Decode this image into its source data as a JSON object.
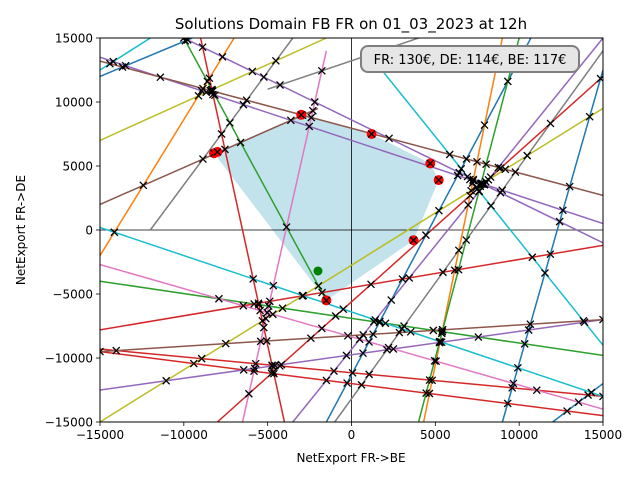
{
  "chart_data": {
    "type": "line",
    "title": "Solutions Domain FB FR on 01_03_2023 at 12h",
    "xlabel": "NetExport FR->BE",
    "ylabel": "NetExport FR->DE",
    "xlim": [
      -15000,
      15000
    ],
    "ylim": [
      -15000,
      15000
    ],
    "xticks": [
      -15000,
      -10000,
      -5000,
      0,
      5000,
      10000,
      15000
    ],
    "yticks": [
      -15000,
      -10000,
      -5000,
      0,
      5000,
      10000,
      15000
    ],
    "grid": false,
    "annotation": "FR: 130€, DE: 114€, BE: 117€",
    "feasible_region": [
      [
        -3000,
        9000
      ],
      [
        1200,
        7500
      ],
      [
        4700,
        5200
      ],
      [
        5200,
        3900
      ],
      [
        3700,
        -800
      ],
      [
        -1500,
        -5500
      ],
      [
        -8200,
        6000
      ]
    ],
    "vertex_points": [
      [
        -3000,
        9000
      ],
      [
        1200,
        7500
      ],
      [
        4700,
        5200
      ],
      [
        5200,
        3900
      ],
      [
        3700,
        -800
      ],
      [
        -1500,
        -5500
      ],
      [
        -8200,
        6000
      ],
      [
        -8000,
        6100
      ]
    ],
    "operating_point": [
      -2000,
      -3200
    ],
    "colors": {
      "region": "#add8e6",
      "vertex": "#ff0000",
      "operating_point": "#008000",
      "cross": "#000000"
    },
    "constraints": [
      {
        "color": "#1f77b4",
        "points": [
          [
            -1500,
            -15000
          ],
          [
            10700,
            15000
          ]
        ]
      },
      {
        "color": "#1f77b4",
        "points": [
          [
            9000,
            -15000
          ],
          [
            15000,
            12500
          ]
        ]
      },
      {
        "color": "#1f77b4",
        "points": [
          [
            12000,
            -15000
          ],
          [
            15000,
            -12000
          ]
        ]
      },
      {
        "color": "#1f77b4",
        "points": [
          [
            -9500,
            15000
          ],
          [
            -15000,
            12000
          ]
        ]
      },
      {
        "color": "#ff7f0e",
        "points": [
          [
            -15000,
            -2000
          ],
          [
            -7000,
            15000
          ]
        ]
      },
      {
        "color": "#ff7f0e",
        "points": [
          [
            4300,
            -15000
          ],
          [
            9000,
            15000
          ]
        ]
      },
      {
        "color": "#2ca02c",
        "points": [
          [
            -10000,
            15000
          ],
          [
            -1500,
            -5500
          ]
        ]
      },
      {
        "color": "#2ca02c",
        "points": [
          [
            -15000,
            -4000
          ],
          [
            15000,
            -9800
          ]
        ]
      },
      {
        "color": "#2ca02c",
        "points": [
          [
            4000,
            -15000
          ],
          [
            10000,
            15000
          ]
        ]
      },
      {
        "color": "#d62728",
        "points": [
          [
            -15000,
            -7800
          ],
          [
            15000,
            -1200
          ]
        ]
      },
      {
        "color": "#d62728",
        "points": [
          [
            -15000,
            -9300
          ],
          [
            15000,
            -13000
          ]
        ]
      },
      {
        "color": "#d62728",
        "points": [
          [
            -15000,
            -9500
          ],
          [
            15000,
            -14500
          ]
        ]
      },
      {
        "color": "#d62728",
        "points": [
          [
            -8000,
            -15000
          ],
          [
            15000,
            12000
          ]
        ]
      },
      {
        "color": "#d62728",
        "points": [
          [
            -9000,
            15000
          ],
          [
            -4000,
            -15000
          ]
        ]
      },
      {
        "color": "#9467bd",
        "points": [
          [
            -15000,
            13500
          ],
          [
            15000,
            500
          ]
        ]
      },
      {
        "color": "#9467bd",
        "points": [
          [
            -10000,
            15000
          ],
          [
            15000,
            -1000
          ]
        ]
      },
      {
        "color": "#9467bd",
        "points": [
          [
            -3500,
            -15000
          ],
          [
            15000,
            15000
          ]
        ]
      },
      {
        "color": "#9467bd",
        "points": [
          [
            -15000,
            -12500
          ],
          [
            15000,
            -7000
          ]
        ]
      },
      {
        "color": "#8c564b",
        "points": [
          [
            -15000,
            2000
          ],
          [
            -2000,
            9500
          ]
        ]
      },
      {
        "color": "#8c564b",
        "points": [
          [
            -15000,
            13200
          ],
          [
            15000,
            2700
          ]
        ]
      },
      {
        "color": "#8c564b",
        "points": [
          [
            -15000,
            -9500
          ],
          [
            15000,
            -7000
          ]
        ]
      },
      {
        "color": "#e377c2",
        "points": [
          [
            -15000,
            -2700
          ],
          [
            15000,
            -14000
          ]
        ]
      },
      {
        "color": "#e377c2",
        "points": [
          [
            -6500,
            -15000
          ],
          [
            -1500,
            14000
          ]
        ]
      },
      {
        "color": "#7f7f7f",
        "points": [
          [
            -3500,
            15000
          ],
          [
            -12000,
            0
          ]
        ]
      },
      {
        "color": "#7f7f7f",
        "points": [
          [
            -1000,
            -15000
          ],
          [
            15000,
            14000
          ]
        ]
      },
      {
        "color": "#7f7f7f",
        "points": [
          [
            -5000,
            11000
          ],
          [
            4000,
            15000
          ]
        ]
      },
      {
        "color": "#bcbd22",
        "points": [
          [
            -15000,
            7000
          ],
          [
            -1500,
            15000
          ]
        ]
      },
      {
        "color": "#bcbd22",
        "points": [
          [
            -15000,
            -15000
          ],
          [
            15000,
            9500
          ]
        ]
      },
      {
        "color": "#17becf",
        "points": [
          [
            -15000,
            12500
          ],
          [
            -12000,
            15000
          ]
        ]
      },
      {
        "color": "#17becf",
        "points": [
          [
            -15000,
            200
          ],
          [
            15000,
            -13000
          ]
        ]
      },
      {
        "color": "#17becf",
        "points": [
          [
            1500,
            13000
          ],
          [
            15000,
            -9000
          ]
        ]
      }
    ]
  }
}
